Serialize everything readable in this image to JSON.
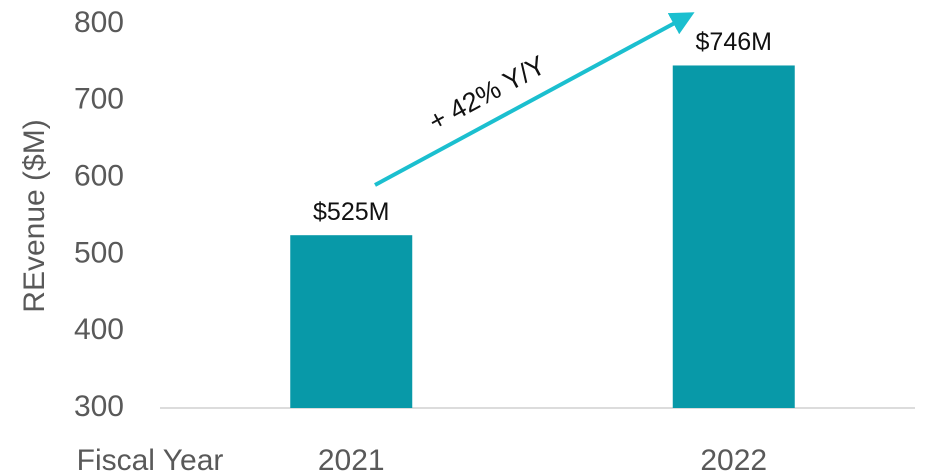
{
  "chart_data": {
    "type": "bar",
    "y_label": "REvenue ($M)",
    "x_label": "Fiscal Year",
    "categories": [
      "2021",
      "2022"
    ],
    "values": [
      525,
      746
    ],
    "value_labels": [
      "$525M",
      "$746M"
    ],
    "color": "#0899a8",
    "ylim": [
      300,
      800
    ],
    "yticks": [
      300,
      400,
      500,
      600,
      700,
      800
    ],
    "grid": false,
    "annotation": "+ 42% Y/Y",
    "annotation_color": "#1bbfcf"
  }
}
